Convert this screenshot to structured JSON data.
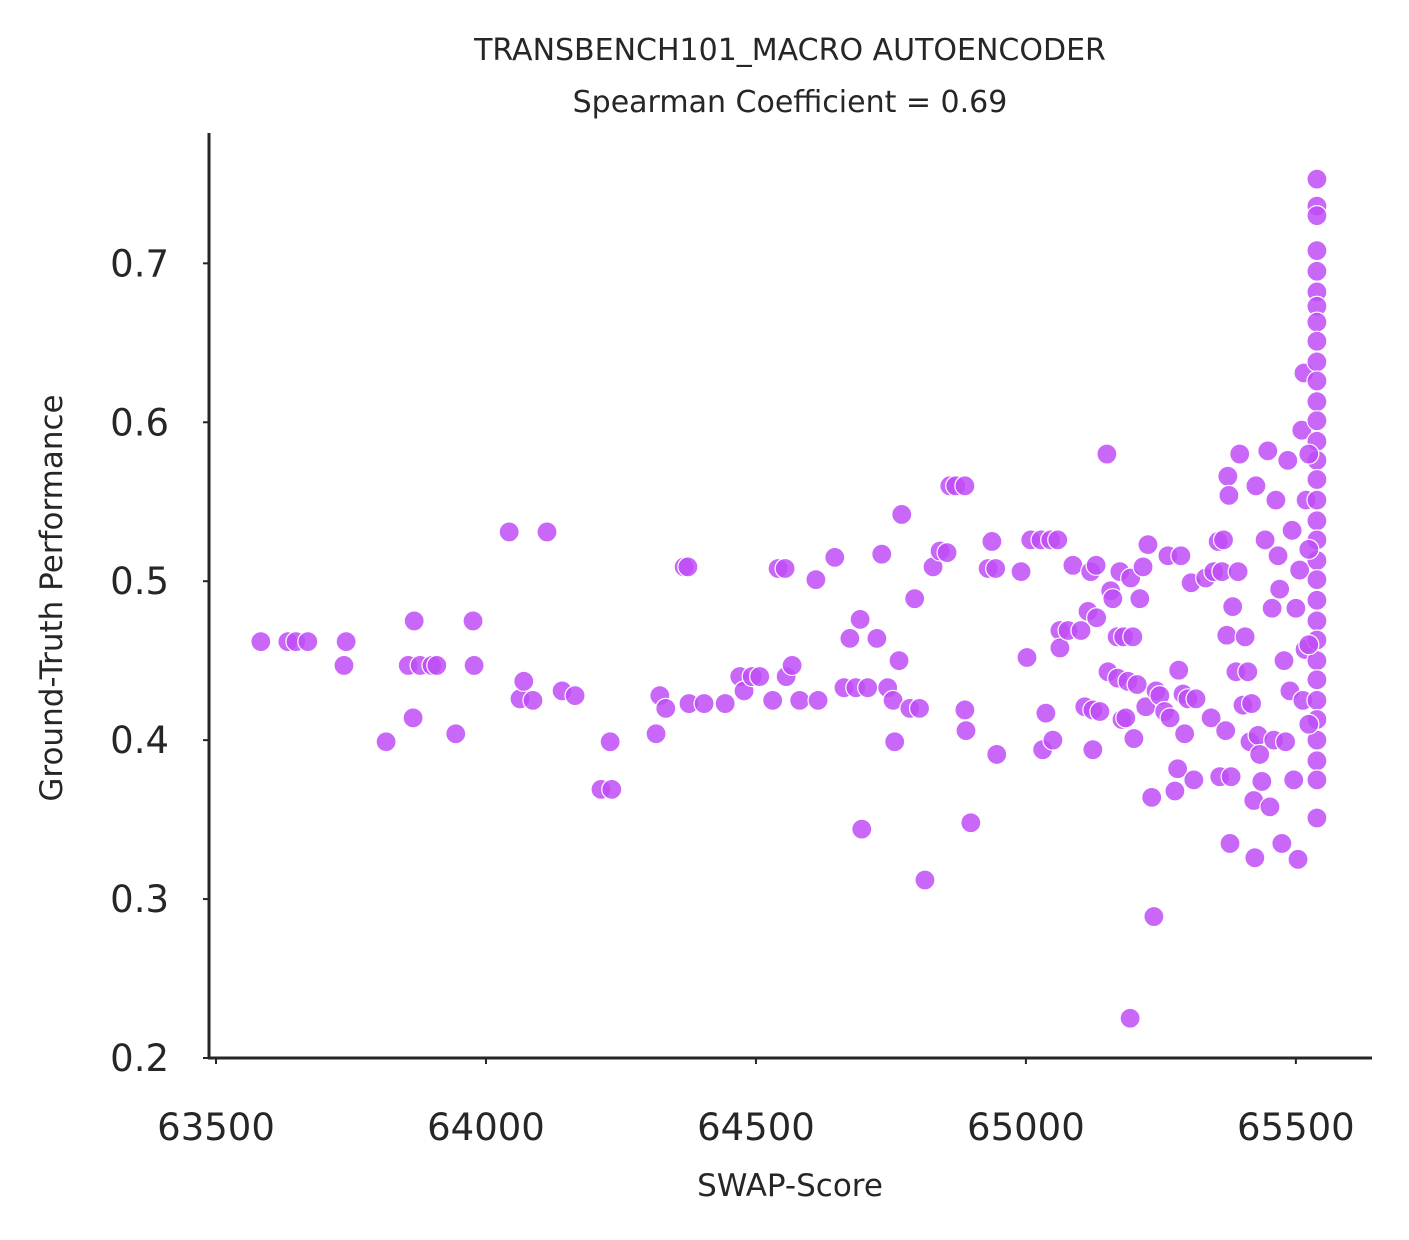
{
  "chart_data": {
    "type": "scatter",
    "title": "TRANSBENCH101_MACRO AUTOENCODER",
    "subtitle": "Spearman Coefficient = 0.69",
    "xlabel": "SWAP-Score",
    "ylabel": "Ground-Truth Performance",
    "color": "#bf4df7",
    "xlim": [
      63487,
      65641
    ],
    "ylim": [
      0.2,
      0.782
    ],
    "xticks": [
      63500,
      64000,
      64500,
      65000,
      65500
    ],
    "yticks": [
      0.2,
      0.3,
      0.4,
      0.5,
      0.6,
      0.7
    ],
    "x": [
      63583,
      63633,
      63648,
      63670,
      63741,
      63737,
      63815,
      63856,
      63867,
      63865,
      63878,
      63900,
      63909,
      63944,
      63976,
      63978,
      64043,
      64063,
      64070,
      64087,
      64113,
      64141,
      64165,
      64213,
      64230,
      64233,
      64315,
      64322,
      64333,
      64367,
      64374,
      64376,
      64404,
      64443,
      64470,
      64478,
      64493,
      64507,
      64531,
      64541,
      64554,
      64556,
      64567,
      64581,
      64611,
      64615,
      64646,
      64663,
      64674,
      64685,
      64693,
      64696,
      64707,
      64724,
      64733,
      64744,
      64754,
      64757,
      64765,
      64770,
      64785,
      64794,
      64803,
      64813,
      64828,
      64841,
      64854,
      64859,
      64870,
      64887,
      64887,
      64889,
      64898,
      64930,
      64937,
      64944,
      64946,
      64991,
      65002,
      65009,
      65028,
      65031,
      65037,
      65046,
      65050,
      65059,
      65063,
      65063,
      65078,
      65087,
      65102,
      65109,
      65115,
      65120,
      65124,
      65124,
      65130,
      65131,
      65137,
      65150,
      65152,
      65157,
      65161,
      65169,
      65170,
      65174,
      65178,
      65181,
      65185,
      65189,
      65193,
      65194,
      65198,
      65200,
      65206,
      65211,
      65217,
      65222,
      65226,
      65233,
      65237,
      65241,
      65248,
      65257,
      65263,
      65267,
      65276,
      65281,
      65283,
      65287,
      65291,
      65294,
      65300,
      65306,
      65311,
      65315,
      65333,
      65343,
      65348,
      65356,
      65359,
      65363,
      65366,
      65370,
      65372,
      65374,
      65376,
      65378,
      65380,
      65383,
      65389,
      65393,
      65396,
      65402,
      65406,
      65411,
      65415,
      65418,
      65422,
      65424,
      65426,
      65430,
      65433,
      65437,
      65443,
      65448,
      65452,
      65456,
      65459,
      65463,
      65467,
      65470,
      65474,
      65478,
      65481,
      65485,
      65489,
      65493,
      65496,
      65500,
      65504,
      65507,
      65511,
      65513,
      65515,
      65517,
      65519,
      65539,
      65539,
      65539,
      65539,
      65539,
      65539,
      65539,
      65539,
      65539,
      65539,
      65539,
      65539,
      65539,
      65539,
      65539,
      65539,
      65539,
      65539,
      65539,
      65539,
      65539,
      65539,
      65539,
      65539,
      65539,
      65539,
      65539,
      65539,
      65539,
      65539,
      65539,
      65539,
      65524,
      65524,
      65524,
      65524
    ],
    "values": [
      0.462,
      0.462,
      0.462,
      0.462,
      0.462,
      0.447,
      0.399,
      0.447,
      0.475,
      0.414,
      0.447,
      0.447,
      0.447,
      0.404,
      0.475,
      0.447,
      0.531,
      0.426,
      0.437,
      0.425,
      0.531,
      0.431,
      0.428,
      0.369,
      0.399,
      0.369,
      0.404,
      0.428,
      0.42,
      0.509,
      0.509,
      0.423,
      0.423,
      0.423,
      0.44,
      0.431,
      0.44,
      0.44,
      0.425,
      0.508,
      0.508,
      0.44,
      0.447,
      0.425,
      0.501,
      0.425,
      0.515,
      0.433,
      0.464,
      0.433,
      0.476,
      0.344,
      0.433,
      0.464,
      0.517,
      0.433,
      0.425,
      0.399,
      0.45,
      0.542,
      0.42,
      0.489,
      0.42,
      0.312,
      0.509,
      0.519,
      0.518,
      0.56,
      0.56,
      0.56,
      0.419,
      0.406,
      0.348,
      0.508,
      0.525,
      0.508,
      0.391,
      0.506,
      0.452,
      0.526,
      0.526,
      0.394,
      0.417,
      0.526,
      0.4,
      0.526,
      0.469,
      0.458,
      0.469,
      0.51,
      0.469,
      0.421,
      0.481,
      0.506,
      0.394,
      0.419,
      0.51,
      0.477,
      0.418,
      0.58,
      0.443,
      0.494,
      0.489,
      0.465,
      0.439,
      0.506,
      0.413,
      0.465,
      0.414,
      0.437,
      0.225,
      0.502,
      0.465,
      0.401,
      0.435,
      0.489,
      0.509,
      0.421,
      0.523,
      0.364,
      0.289,
      0.431,
      0.428,
      0.418,
      0.516,
      0.414,
      0.368,
      0.382,
      0.444,
      0.516,
      0.429,
      0.404,
      0.426,
      0.499,
      0.375,
      0.426,
      0.502,
      0.414,
      0.506,
      0.525,
      0.377,
      0.506,
      0.526,
      0.406,
      0.466,
      0.566,
      0.554,
      0.335,
      0.377,
      0.484,
      0.443,
      0.506,
      0.58,
      0.422,
      0.465,
      0.443,
      0.399,
      0.423,
      0.362,
      0.326,
      0.56,
      0.403,
      0.391,
      0.374,
      0.526,
      0.582,
      0.358,
      0.483,
      0.4,
      0.551,
      0.516,
      0.495,
      0.335,
      0.45,
      0.399,
      0.576,
      0.431,
      0.532,
      0.375,
      0.483,
      0.325,
      0.507,
      0.595,
      0.425,
      0.631,
      0.457,
      0.551,
      0.753,
      0.736,
      0.73,
      0.708,
      0.695,
      0.682,
      0.673,
      0.663,
      0.651,
      0.638,
      0.626,
      0.613,
      0.601,
      0.588,
      0.576,
      0.564,
      0.551,
      0.538,
      0.526,
      0.513,
      0.501,
      0.488,
      0.475,
      0.463,
      0.45,
      0.438,
      0.425,
      0.413,
      0.4,
      0.387,
      0.375,
      0.351,
      0.46,
      0.52,
      0.41,
      0.58
    ]
  }
}
